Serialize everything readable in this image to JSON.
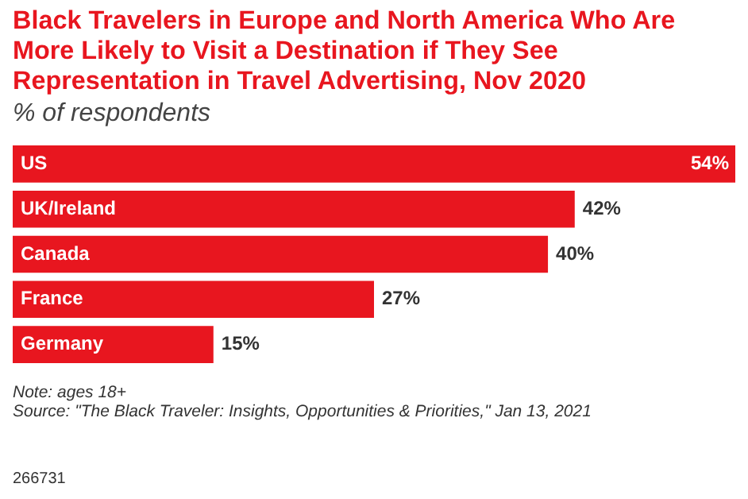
{
  "chart_data": {
    "type": "bar",
    "orientation": "horizontal",
    "title": "Black Travelers in Europe and North America Who Are More Likely to Visit a Destination if They See Representation in Travel Advertising, Nov 2020",
    "subtitle": "% of respondents",
    "categories": [
      "US",
      "UK/Ireland",
      "Canada",
      "France",
      "Germany"
    ],
    "values": [
      54,
      42,
      40,
      27,
      15
    ],
    "value_labels": [
      "54%",
      "42%",
      "40%",
      "27%",
      "15%"
    ],
    "color": "#e8161f",
    "annotations": [
      "Note: ages 18+",
      "Source: \"The Black Traveler: Insights, Opportunities & Priorities,\" Jan 13, 2021",
      "266731"
    ]
  }
}
